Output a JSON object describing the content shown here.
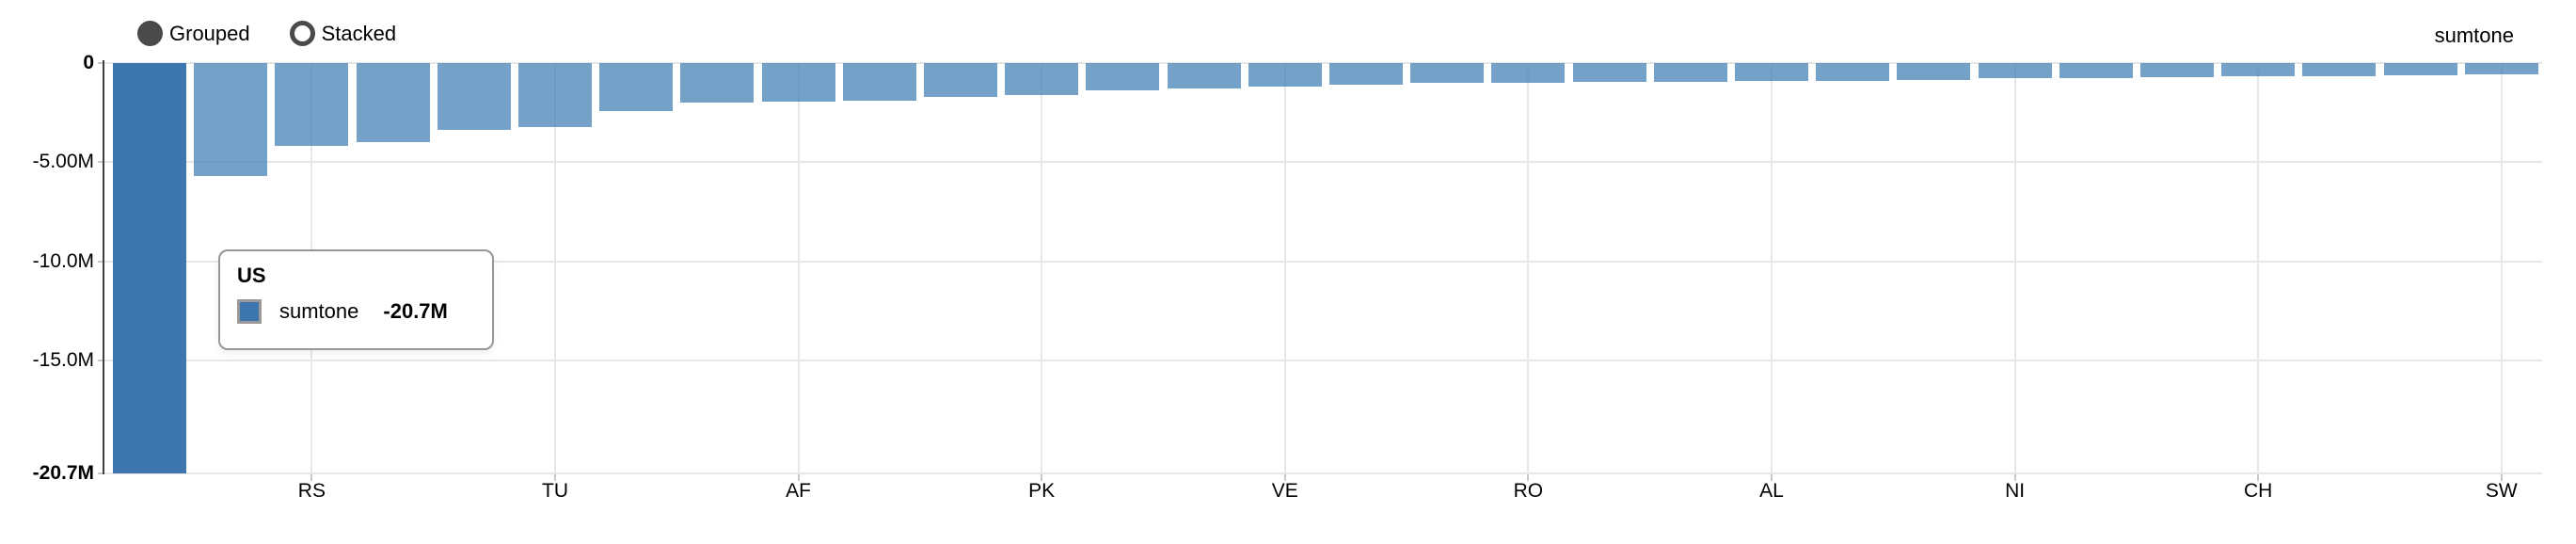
{
  "controls": {
    "grouped_label": "Grouped",
    "stacked_label": "Stacked",
    "selected": "Grouped"
  },
  "legend": {
    "items": [
      {
        "label": "sumtone",
        "color": "#3d76af"
      }
    ],
    "position": "top-right"
  },
  "tooltip": {
    "title": "US",
    "series_label": "sumtone",
    "value": "-20.7M",
    "swatch_color": "#3d76af"
  },
  "colors": {
    "bar_normal": "rgba(70,130,180,0.75)",
    "bar_hovered": "#3d76af",
    "grid": "#e7e7e7",
    "axis_line": "#404040",
    "radio": "#4a4a4a",
    "text": "#000000"
  },
  "chart_data": {
    "type": "bar",
    "title": "",
    "xlabel": "",
    "ylabel": "",
    "unit": "millions",
    "grid": true,
    "legend_position": "top-right",
    "ylim": [
      -20.7,
      0
    ],
    "series": [
      {
        "name": "sumtone"
      }
    ],
    "values": [
      -20.7,
      -5.7,
      -4.2,
      -4.0,
      -3.35,
      -3.25,
      -2.42,
      -2.0,
      -1.95,
      -1.9,
      -1.73,
      -1.6,
      -1.4,
      -1.27,
      -1.2,
      -1.07,
      -1.02,
      -0.98,
      -0.95,
      -0.93,
      -0.9,
      -0.88,
      -0.85,
      -0.78,
      -0.76,
      -0.72,
      -0.68,
      -0.66,
      -0.63,
      -0.58
    ],
    "hovered_bar": {
      "index": 0,
      "label": "US",
      "value_label": "-20.7M"
    },
    "x_ticks": [
      {
        "label": "RS",
        "bar_index": 2
      },
      {
        "label": "TU",
        "bar_index": 5
      },
      {
        "label": "AF",
        "bar_index": 8
      },
      {
        "label": "PK",
        "bar_index": 11
      },
      {
        "label": "VE",
        "bar_index": 14
      },
      {
        "label": "RO",
        "bar_index": 17
      },
      {
        "label": "AL",
        "bar_index": 20
      },
      {
        "label": "NI",
        "bar_index": 23
      },
      {
        "label": "CH",
        "bar_index": 26
      },
      {
        "label": "SW",
        "bar_index": 29
      }
    ],
    "y_ticks": [
      {
        "label": "0",
        "value": 0,
        "bold": true
      },
      {
        "label": "-5.00M",
        "value": -5,
        "bold": false
      },
      {
        "label": "-10.0M",
        "value": -10,
        "bold": false
      },
      {
        "label": "-15.0M",
        "value": -15,
        "bold": false
      },
      {
        "label": "-20.7M",
        "value": -20.7,
        "bold": true
      }
    ]
  }
}
